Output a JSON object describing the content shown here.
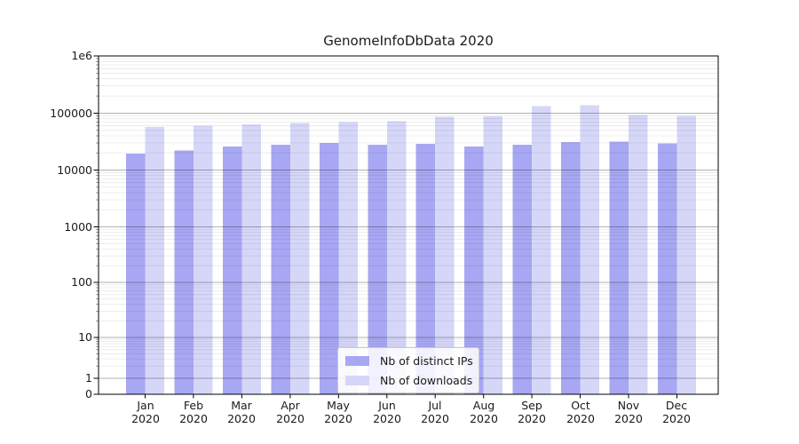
{
  "figure": {
    "background": "#ffffff"
  },
  "chart_data": {
    "type": "bar",
    "title": "GenomeInfoDbData 2020",
    "categories": [
      "Jan",
      "Feb",
      "Mar",
      "Apr",
      "May",
      "Jun",
      "Jul",
      "Aug",
      "Sep",
      "Oct",
      "Nov",
      "Dec"
    ],
    "category_year": "2020",
    "series": [
      {
        "name": "Nb of distinct IPs",
        "color": "#a7a7f3",
        "values": [
          19500,
          22000,
          26000,
          28000,
          30000,
          28000,
          29000,
          26000,
          28000,
          31000,
          31500,
          29500
        ]
      },
      {
        "name": "Nb of downloads",
        "color": "#d6d6f8",
        "values": [
          57500,
          60500,
          63500,
          67000,
          69500,
          72000,
          87000,
          88000,
          133000,
          137000,
          93000,
          89000
        ]
      }
    ],
    "yscale": "symlog",
    "ylim": [
      0,
      1000000
    ],
    "yticks": [
      0,
      1,
      10,
      100,
      1000,
      10000,
      100000,
      1000000
    ],
    "ytick_labels": [
      "0",
      "1",
      "10",
      "100",
      "1000",
      "10000",
      "100000",
      "1e6"
    ],
    "xlabel": "",
    "ylabel": "",
    "grid": true,
    "legend_position": "lower center"
  },
  "colors": {
    "grid_major": "rgba(0,0,0,0.30)",
    "grid_minor": "rgba(0,0,0,0.085)",
    "axis": "#000000",
    "text": "#1a1a1a"
  }
}
